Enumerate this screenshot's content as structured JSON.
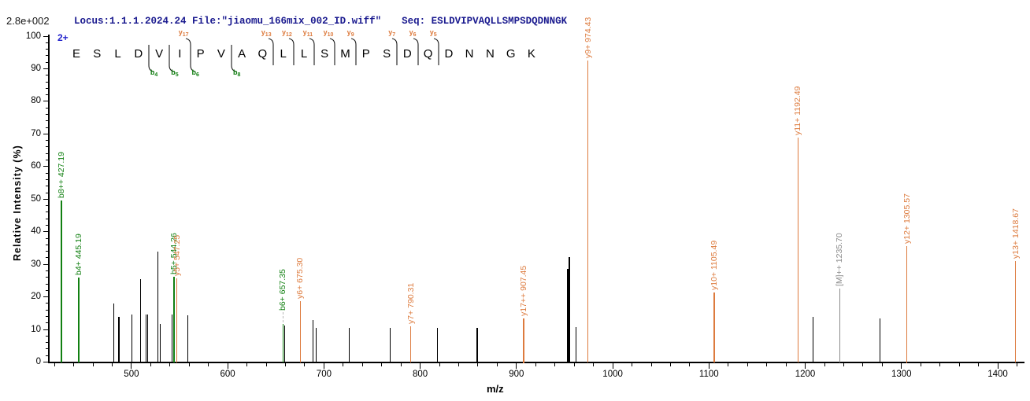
{
  "header": {
    "locus_file": "Locus:1.1.1.2024.24 File:\"jiaomu_166mix_002_ID.wiff\"",
    "seq_label": "Seq:",
    "seq_value": "ESLDVIPVAQLLSMPSDQDNNGK",
    "max_intensity_scale": "2.8e+002"
  },
  "precursor_charge": "2+",
  "sequence": {
    "residues": [
      "E",
      "S",
      "L",
      "D",
      "V",
      "I",
      "P",
      "V",
      "A",
      "Q",
      "L",
      "L",
      "S",
      "M",
      "P",
      "S",
      "D",
      "Q",
      "D",
      "N",
      "N",
      "G",
      "K"
    ],
    "markers": [
      {
        "after": 4,
        "b": 4
      },
      {
        "after": 5,
        "b": 5
      },
      {
        "after": 6,
        "b": 6,
        "y": 17
      },
      {
        "after": 8,
        "b": 8
      },
      {
        "after": 10,
        "y": 13
      },
      {
        "after": 11,
        "y": 12
      },
      {
        "after": 12,
        "y": 11
      },
      {
        "after": 13,
        "y": 10
      },
      {
        "after": 14,
        "y": 9
      },
      {
        "after": 16,
        "y": 7
      },
      {
        "after": 17,
        "y": 6
      },
      {
        "after": 18,
        "y": 5
      }
    ]
  },
  "colors": {
    "b_ion": "#128012",
    "y_ion": "#dd7b3e",
    "precursor": "#8a8a8a",
    "unassigned": "#000000",
    "header_text": "#1a1a8f",
    "charge": "#2424cc",
    "axis": "#000000",
    "marker_line": "#1a1a1a",
    "leader": "#b8b8b8"
  },
  "chart_data": {
    "type": "bar",
    "subtype": "ms2-fragment-spectrum",
    "title": "",
    "xlabel": "m/z",
    "ylabel": "Relative  Intensity (%)",
    "xlim": [
      415,
      1427
    ],
    "ylim": [
      0,
      100
    ],
    "x_major_ticks": [
      500,
      600,
      700,
      800,
      900,
      1000,
      1100,
      1200,
      1300,
      1400
    ],
    "x_minor_step": 20,
    "y_major_ticks": [
      0,
      10,
      20,
      30,
      40,
      50,
      60,
      70,
      80,
      90,
      100
    ],
    "y_minor_step": 2,
    "grid": false,
    "legend": null,
    "peaks": [
      {
        "mz": 427.19,
        "intensity": 49.5,
        "ion": "b",
        "label": "b8++ 427.19"
      },
      {
        "mz": 445.19,
        "intensity": 26.0,
        "ion": "b",
        "label": "b4+ 445.19"
      },
      {
        "mz": 482.0,
        "intensity": 17.9,
        "ion": "unassigned",
        "label": ""
      },
      {
        "mz": 487.0,
        "intensity": 14.0,
        "ion": "unassigned",
        "label": ""
      },
      {
        "mz": 500.8,
        "intensity": 14.5,
        "ion": "unassigned",
        "label": ""
      },
      {
        "mz": 509.8,
        "intensity": 25.5,
        "ion": "unassigned",
        "label": ""
      },
      {
        "mz": 515.0,
        "intensity": 14.5,
        "ion": "unassigned",
        "label": ""
      },
      {
        "mz": 516.8,
        "intensity": 14.5,
        "ion": "unassigned",
        "label": ""
      },
      {
        "mz": 527.6,
        "intensity": 34.0,
        "ion": "unassigned",
        "label": ""
      },
      {
        "mz": 530.0,
        "intensity": 11.7,
        "ion": "unassigned",
        "label": ""
      },
      {
        "mz": 542.3,
        "intensity": 14.5,
        "ion": "unassigned",
        "label": ""
      },
      {
        "mz": 544.26,
        "intensity": 26.2,
        "ion": "b",
        "label": "b5+ 544.26"
      },
      {
        "mz": 547.25,
        "intensity": 25.8,
        "ion": "y",
        "label": "y5+ 547.25"
      },
      {
        "mz": 558.6,
        "intensity": 14.3,
        "ion": "unassigned",
        "label": ""
      },
      {
        "mz": 657.35,
        "intensity": 11.6,
        "ion": "b",
        "label": "b6+ 657.35",
        "leader": true
      },
      {
        "mz": 659.3,
        "intensity": 11.2,
        "ion": "unassigned",
        "label": ""
      },
      {
        "mz": 675.3,
        "intensity": 18.6,
        "ion": "y",
        "label": "y6+ 675.30"
      },
      {
        "mz": 688.6,
        "intensity": 12.8,
        "ion": "unassigned",
        "label": ""
      },
      {
        "mz": 691.9,
        "intensity": 10.4,
        "ion": "unassigned",
        "label": ""
      },
      {
        "mz": 726.0,
        "intensity": 10.4,
        "ion": "unassigned",
        "label": ""
      },
      {
        "mz": 769.0,
        "intensity": 10.6,
        "ion": "unassigned",
        "label": ""
      },
      {
        "mz": 790.31,
        "intensity": 10.9,
        "ion": "y",
        "label": "y7+ 790.31"
      },
      {
        "mz": 817.9,
        "intensity": 10.6,
        "ion": "unassigned",
        "label": ""
      },
      {
        "mz": 859.3,
        "intensity": 10.6,
        "ion": "unassigned",
        "label": ""
      },
      {
        "mz": 907.45,
        "intensity": 13.5,
        "ion": "y",
        "label": "y17++ 907.45"
      },
      {
        "mz": 953.0,
        "intensity": 28.5,
        "ion": "unassigned",
        "label": "",
        "width": 2.2
      },
      {
        "mz": 954.9,
        "intensity": 32.1,
        "ion": "unassigned",
        "label": "",
        "width": 1.6
      },
      {
        "mz": 961.8,
        "intensity": 10.7,
        "ion": "unassigned",
        "label": ""
      },
      {
        "mz": 974.43,
        "intensity": 92.5,
        "ion": "y",
        "label": "y9+ 974.43"
      },
      {
        "mz": 1105.49,
        "intensity": 21.3,
        "ion": "y",
        "label": "y10+ 1105.49"
      },
      {
        "mz": 1192.49,
        "intensity": 68.8,
        "ion": "y",
        "label": "y11+ 1192.49"
      },
      {
        "mz": 1208.0,
        "intensity": 14.0,
        "ion": "unassigned",
        "label": ""
      },
      {
        "mz": 1235.7,
        "intensity": 22.5,
        "ion": "precursor",
        "label": "[M]++ 1235.70"
      },
      {
        "mz": 1278.0,
        "intensity": 13.5,
        "ion": "unassigned",
        "label": ""
      },
      {
        "mz": 1305.57,
        "intensity": 35.7,
        "ion": "y",
        "label": "y12+ 1305.57"
      },
      {
        "mz": 1418.67,
        "intensity": 30.9,
        "ion": "y",
        "label": "y13+ 1418.67"
      }
    ]
  }
}
